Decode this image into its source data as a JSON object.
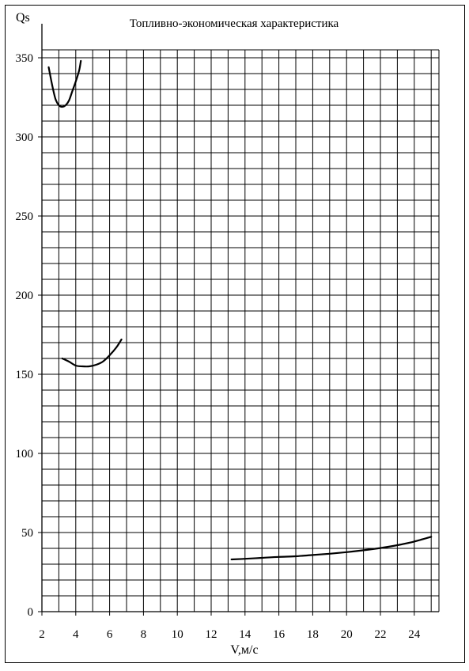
{
  "chart_data": {
    "type": "line",
    "title": "Топливно-экономическая характеристика",
    "xlabel": "V,м/с",
    "ylabel": "Qs",
    "xlim": [
      2,
      25.5
    ],
    "ylim": [
      0,
      355
    ],
    "x_ticks": [
      2,
      4,
      6,
      8,
      10,
      12,
      14,
      16,
      18,
      20,
      22,
      24
    ],
    "y_ticks": [
      0,
      50,
      100,
      150,
      200,
      250,
      300,
      350
    ],
    "x_minor_step": 1,
    "y_minor_step": 10,
    "grid": true,
    "legend": "none",
    "line_color": "#000000",
    "series": [
      {
        "x": [
          2.4,
          2.6,
          2.8,
          3.0,
          3.2,
          3.4,
          3.6,
          3.8,
          4.0,
          4.2,
          4.3
        ],
        "y": [
          344,
          333,
          324,
          320,
          319,
          320,
          323,
          329,
          335,
          342,
          348
        ]
      },
      {
        "x": [
          3.2,
          3.6,
          4.0,
          4.4,
          4.8,
          5.2,
          5.6,
          6.0,
          6.4,
          6.7
        ],
        "y": [
          160,
          158,
          155.5,
          155,
          155,
          156,
          158,
          162,
          167,
          172
        ]
      },
      {
        "x": [
          13.2,
          14,
          15,
          16,
          17,
          18,
          19,
          20,
          21,
          22,
          23,
          24,
          25
        ],
        "y": [
          33,
          33.4,
          34,
          34.6,
          35,
          35.8,
          36.6,
          37.6,
          38.8,
          40.2,
          42,
          44.3,
          47.3
        ]
      }
    ]
  }
}
